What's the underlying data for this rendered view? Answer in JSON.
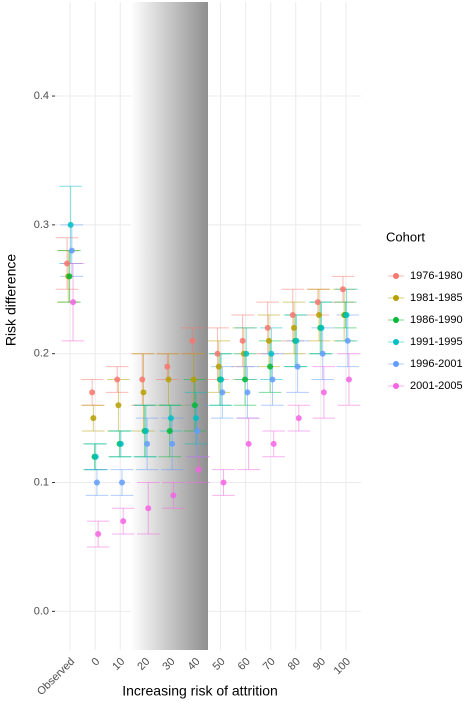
{
  "chart_data": {
    "type": "errorbar-points",
    "x_label": "Increasing risk of attrition",
    "y_label": "Risk difference",
    "legend_title": "Cohort",
    "categories": [
      "Observed",
      "0",
      "10",
      "20",
      "30",
      "40",
      "50",
      "60",
      "70",
      "80",
      "90",
      "100"
    ],
    "ylim": [
      -0.03,
      0.473
    ],
    "yticks": [
      {
        "value": 0,
        "label": "0.0"
      },
      0.1,
      0.2,
      0.3,
      0.4
    ],
    "grid": true,
    "legend_position": "right",
    "series": [
      {
        "name": "1976-1980",
        "color": "#F8766D",
        "values": [
          0.27,
          0.17,
          0.18,
          0.18,
          0.19,
          0.21,
          0.2,
          0.21,
          0.22,
          0.23,
          0.24,
          0.25
        ],
        "errors": [
          0.02,
          0.01,
          0.01,
          0.02,
          0.01,
          0.01,
          0.02,
          0.02,
          0.02,
          0.02,
          0.01,
          0.01
        ]
      },
      {
        "name": "1981-1985",
        "color": "#B79F00",
        "values": [
          0.26,
          0.15,
          0.16,
          0.17,
          0.18,
          0.18,
          0.19,
          0.2,
          0.21,
          0.22,
          0.23,
          0.23
        ],
        "errors": [
          0.02,
          0.01,
          0.02,
          0.03,
          0.02,
          0.02,
          0.02,
          0.02,
          0.02,
          0.02,
          0.02,
          0.02
        ]
      },
      {
        "name": "1986-1990",
        "color": "#00BA38",
        "values": [
          0.26,
          0.12,
          0.13,
          0.14,
          0.14,
          0.16,
          0.18,
          0.18,
          0.19,
          0.21,
          0.22,
          0.23
        ],
        "errors": [
          0.02,
          0.01,
          0.01,
          0.02,
          0.02,
          0.02,
          0.02,
          0.02,
          0.02,
          0.02,
          0.02,
          0.01
        ]
      },
      {
        "name": "1991-1995",
        "color": "#00BFC4",
        "values": [
          0.3,
          0.12,
          0.13,
          0.14,
          0.15,
          0.15,
          0.18,
          0.2,
          0.2,
          0.21,
          0.22,
          0.23
        ],
        "errors": [
          0.03,
          0.01,
          0.01,
          0.02,
          0.01,
          0.02,
          0.02,
          0.02,
          0.02,
          0.02,
          0.02,
          0.02
        ]
      },
      {
        "name": "1996-2001",
        "color": "#619CFF",
        "values": [
          0.28,
          0.1,
          0.1,
          0.13,
          0.13,
          0.14,
          0.17,
          0.17,
          0.18,
          0.19,
          0.2,
          0.21
        ],
        "errors": [
          0.02,
          0.01,
          0.01,
          0.02,
          0.02,
          0.02,
          0.02,
          0.02,
          0.02,
          0.02,
          0.02,
          0.02
        ]
      },
      {
        "name": "2001-2005",
        "color": "#F564E3",
        "values": [
          0.24,
          0.06,
          0.07,
          0.08,
          0.09,
          0.11,
          0.1,
          0.13,
          0.13,
          0.15,
          0.17,
          0.18
        ],
        "errors": [
          0.03,
          0.01,
          0.01,
          0.02,
          0.01,
          0.01,
          0.01,
          0.02,
          0.01,
          0.01,
          0.02,
          0.02
        ]
      }
    ]
  }
}
